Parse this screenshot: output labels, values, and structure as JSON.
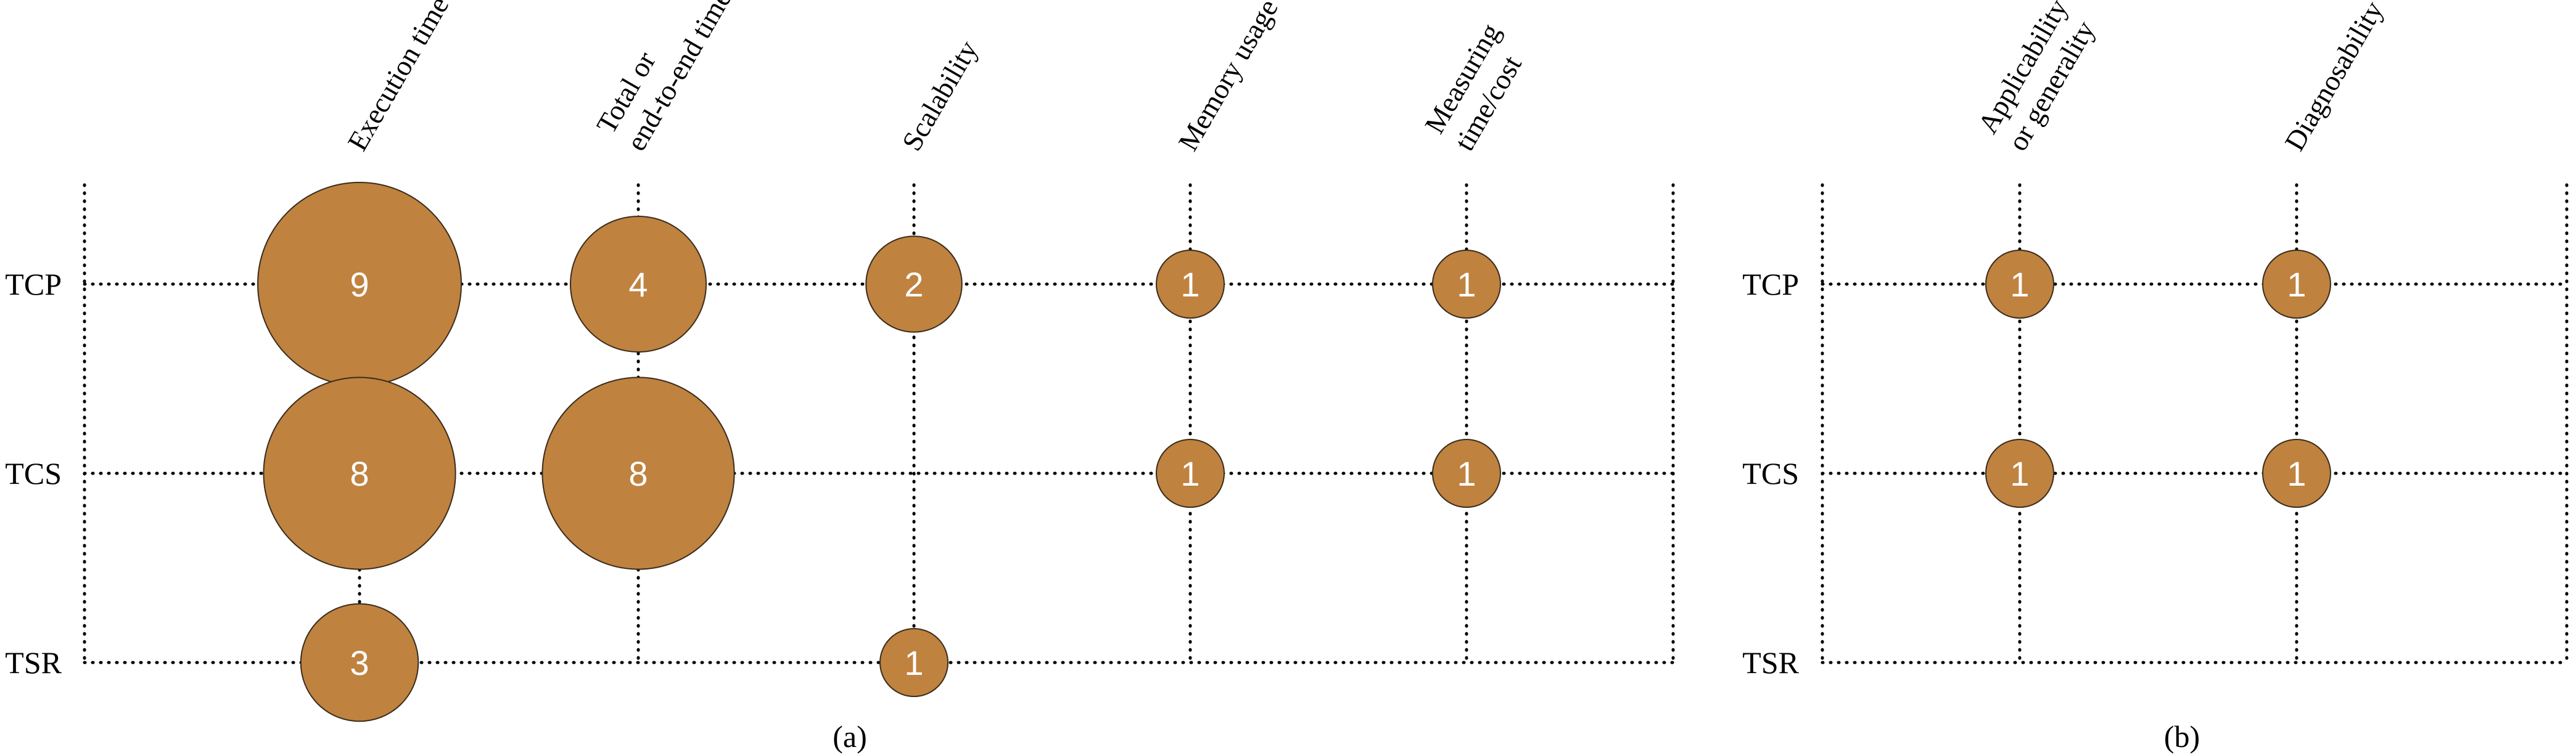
{
  "colors": {
    "bubble": "#bf823f",
    "bubble_stroke": "#3a2c1c",
    "text_on_bubble": "#ffffff",
    "grid": "#000000"
  },
  "chart_data": [
    {
      "type": "bubble",
      "panel_label": "(a)",
      "rows": [
        "TCP",
        "TCS",
        "TSR"
      ],
      "columns": [
        [
          "Execution time"
        ],
        [
          "Total or",
          "end-to-end time"
        ],
        [
          "Scalability"
        ],
        [
          "Memory usage"
        ],
        [
          "Measuring",
          "time/cost"
        ]
      ],
      "values": [
        [
          9,
          4,
          2,
          1,
          1
        ],
        [
          8,
          8,
          0,
          1,
          1
        ],
        [
          3,
          0,
          1,
          0,
          0
        ]
      ],
      "grid": "dotted"
    },
    {
      "type": "bubble",
      "panel_label": "(b)",
      "rows": [
        "TCP",
        "TCS",
        "TSR"
      ],
      "columns": [
        [
          "Applicability",
          "or generality"
        ],
        [
          "Diagnosability"
        ]
      ],
      "values": [
        [
          1,
          1
        ],
        [
          1,
          1
        ],
        [
          0,
          0
        ]
      ],
      "grid": "dotted"
    }
  ]
}
